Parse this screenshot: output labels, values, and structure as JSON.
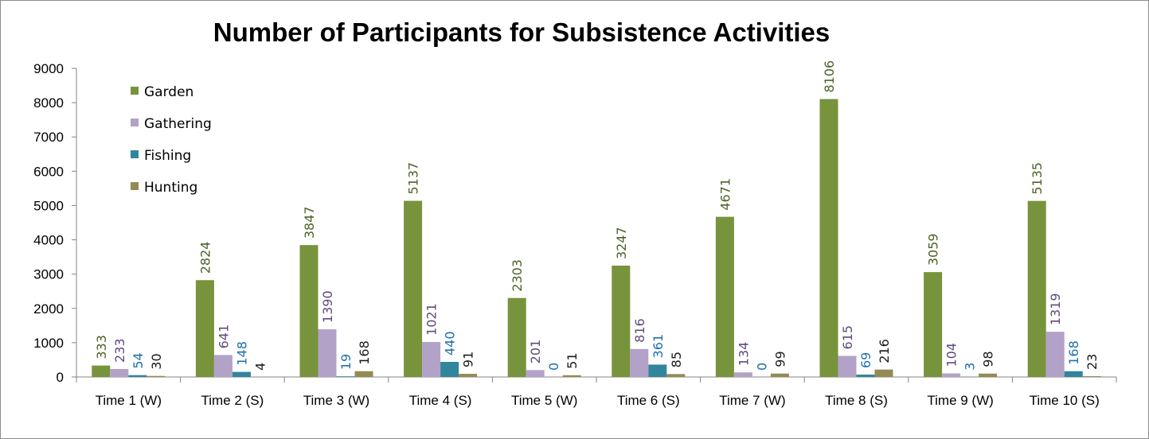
{
  "chart_data": {
    "type": "bar",
    "title": "Number of Participants for Subsistence Activities",
    "xlabel": "",
    "ylabel": "",
    "ylim": [
      0,
      9000
    ],
    "yticks": [
      0,
      1000,
      2000,
      3000,
      4000,
      5000,
      6000,
      7000,
      8000,
      9000
    ],
    "categories": [
      "Time 1 (W)",
      "Time 2 (S)",
      "Time 3 (W)",
      "Time 4 (S)",
      "Time 5 (W)",
      "Time 6 (S)",
      "Time 7 (W)",
      "Time 8 (S)",
      "Time 9 (W)",
      "Time 10 (S)"
    ],
    "series": [
      {
        "name": "Garden",
        "color": "#77933c",
        "label_color": "#4f6228",
        "values": [
          333,
          2824,
          3847,
          5137,
          2303,
          3247,
          4671,
          8106,
          3059,
          5135
        ]
      },
      {
        "name": "Gathering",
        "color": "#b3a2c7",
        "label_color": "#604a7b",
        "values": [
          233,
          641,
          1390,
          1021,
          201,
          816,
          134,
          615,
          104,
          1319
        ]
      },
      {
        "name": "Fishing",
        "color": "#31859c",
        "label_color": "#1f6fad",
        "values": [
          54,
          148,
          19,
          440,
          0,
          361,
          0,
          69,
          3,
          168
        ]
      },
      {
        "name": "Hunting",
        "color": "#948a54",
        "label_color": "#1a1a1a",
        "values": [
          30,
          4,
          168,
          91,
          51,
          85,
          99,
          216,
          98,
          23
        ]
      }
    ],
    "data_labels": true,
    "grid": false,
    "legend_position": "top-left"
  }
}
